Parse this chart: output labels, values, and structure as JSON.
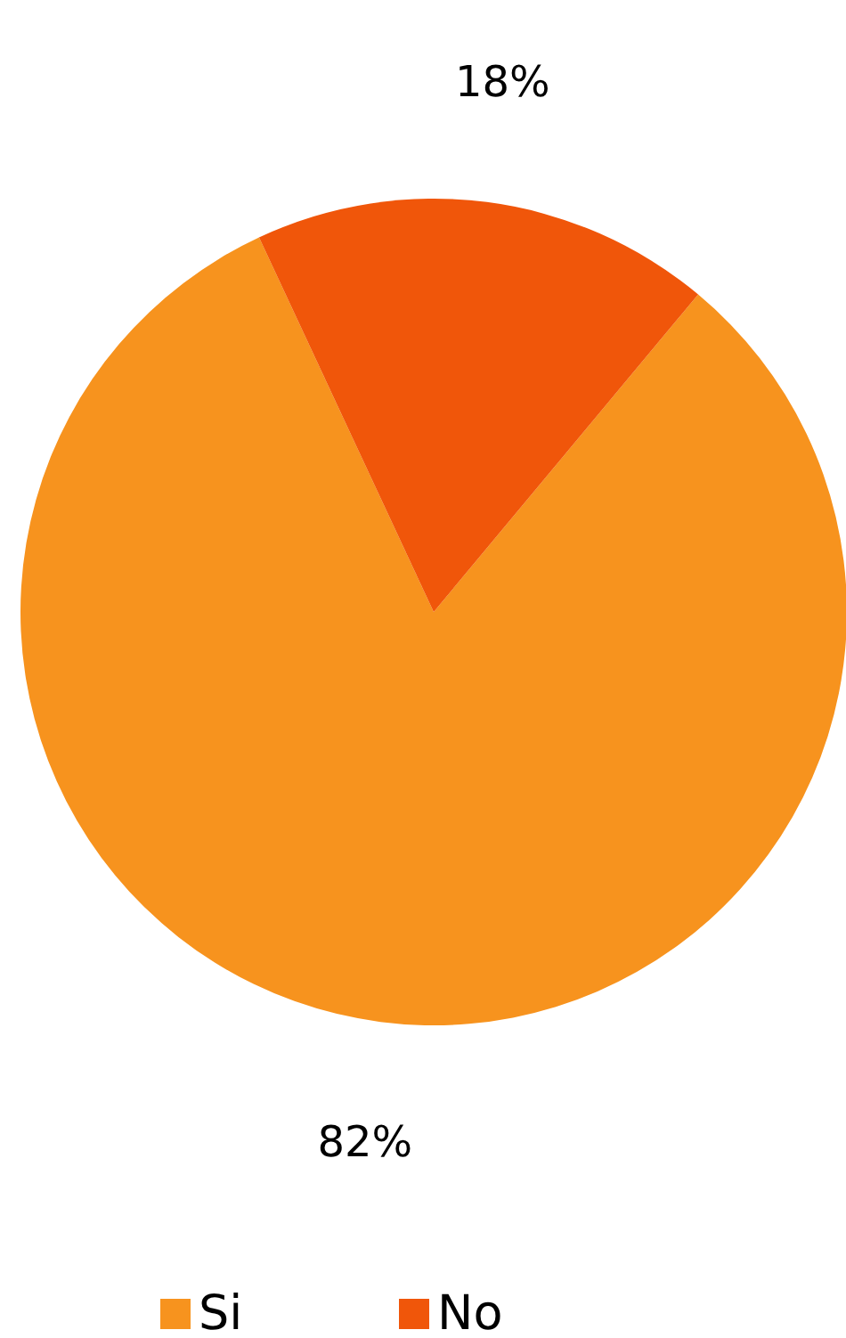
{
  "chart_data": {
    "type": "pie",
    "categories": [
      "Si",
      "No"
    ],
    "values": [
      82,
      18
    ],
    "colors": [
      "#f7931e",
      "#f0560a"
    ],
    "value_labels": [
      "82%",
      "18%"
    ],
    "legend": "bottom"
  }
}
